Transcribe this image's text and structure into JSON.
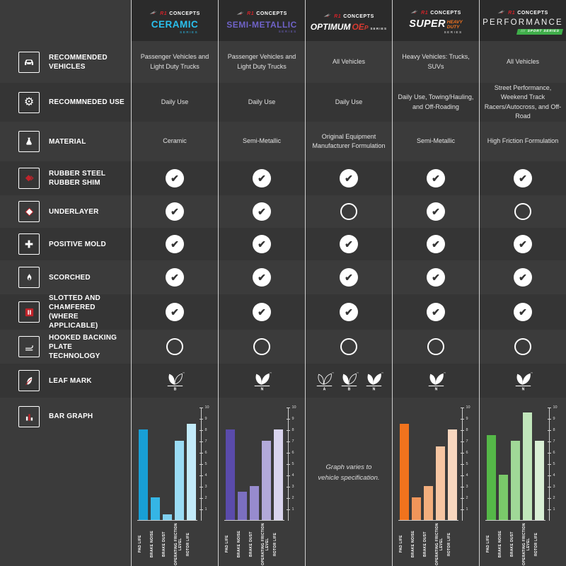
{
  "brand": {
    "prefix": "R1",
    "name": "CONCEPTS"
  },
  "header": {
    "columns": [
      {
        "title": "CERAMIC",
        "series": "SERIES",
        "accent": "#2ac0ee"
      },
      {
        "title": "SEMI-METALLIC",
        "series": "SERIES",
        "accent": "#6f63c8"
      },
      {
        "title": "OPTIMUM",
        "accent_text": "OE",
        "accent_sub": "P",
        "series": "SERIES",
        "accent": "#d93a30"
      },
      {
        "title": "SUPER",
        "accent_line1": "HEAVY",
        "accent_line2": "DUTY",
        "series": "SERIES",
        "accent": "#f3731f"
      },
      {
        "title": "PERFORMANCE",
        "badge_prefix": "///",
        "badge": "SPORT SERIES",
        "accent": "#3fae4a"
      }
    ]
  },
  "row_labels": [
    {
      "id": "vehicles",
      "label": "RECOMMENDED VEHICLES",
      "icon": "car-icon"
    },
    {
      "id": "use",
      "label": "RECOMMNEDED USE",
      "icon": "gear-icon"
    },
    {
      "id": "material",
      "label": "MATERIAL",
      "icon": "flask-icon"
    },
    {
      "id": "shim",
      "label": "RUBBER STEEL RUBBER SHIM",
      "icon": "shim-icon"
    },
    {
      "id": "underlayer",
      "label": "UNDERLAYER",
      "icon": "diamond-icon"
    },
    {
      "id": "mold",
      "label": "POSITIVE MOLD",
      "icon": "plus-icon"
    },
    {
      "id": "scorched",
      "label": "SCORCHED",
      "icon": "flame-icon"
    },
    {
      "id": "slotted",
      "label": "SLOTTED AND CHAMFERED (WHERE APPLICABLE)",
      "icon": "slots-icon"
    },
    {
      "id": "hooked",
      "label": "HOOKED BACKING PLATE TECHNOLOGY",
      "icon": "hook-icon"
    },
    {
      "id": "leaf",
      "label": "LEAF MARK",
      "icon": "leaf-icon"
    },
    {
      "id": "graph",
      "label": "BAR GRAPH",
      "icon": "bargraph-icon"
    }
  ],
  "text_rows": {
    "vehicles": [
      "Passenger Vehicles and Light Duty Trucks",
      "Passenger Vehicles and Light Duty Trucks",
      "All Vehicles",
      "Heavy Vehicles: Trucks, SUVs",
      "All Vehicles"
    ],
    "use": [
      "Daily Use",
      "Daily Use",
      "Daily Use",
      "Daily Use, Towing/Hauling, and Off-Roading",
      "Street Performance, Weekend Track Racers/Autocross, and Off-Road"
    ],
    "material": [
      "Ceramic",
      "Semi-Metallic",
      "Original Equipment Manufacturer Formulation",
      "Semi-Metallic",
      "High Friction Formulation"
    ]
  },
  "feature_rows": {
    "shim": [
      true,
      true,
      true,
      true,
      true
    ],
    "underlayer": [
      true,
      true,
      false,
      true,
      false
    ],
    "mold": [
      true,
      true,
      true,
      true,
      true
    ],
    "scorched": [
      true,
      true,
      true,
      true,
      true
    ],
    "slotted": [
      true,
      true,
      true,
      true,
      true
    ],
    "hooked": [
      false,
      false,
      false,
      false,
      false
    ]
  },
  "leaf_row": [
    [
      "B"
    ],
    [
      "N"
    ],
    [
      "A",
      "B",
      "N"
    ],
    [
      "N"
    ],
    [
      "N"
    ]
  ],
  "leaf_tm": "™",
  "graph_note": "Graph varies to vehicle specification.",
  "chart_data": [
    {
      "type": "bar",
      "series_name": "CERAMIC SERIES",
      "categories": [
        "PAD LIFE",
        "BRAKE NOISE",
        "BRAKE DUST",
        "OPERATING FRICTION LEVEL",
        "ROTOR LIFE"
      ],
      "values": [
        8,
        2,
        0.5,
        7,
        8.5
      ],
      "ylim": [
        0,
        10
      ],
      "yticks": [
        1,
        2,
        3,
        4,
        5,
        6,
        7,
        8,
        9,
        10
      ],
      "bar_colors": [
        "#189fd6",
        "#35b5e5",
        "#7fd0ef",
        "#9adcf4",
        "#c2ebfa"
      ]
    },
    {
      "type": "bar",
      "series_name": "SEMI-METALLIC SERIES",
      "categories": [
        "PAD LIFE",
        "BRAKE NOISE",
        "BRAKE DUST",
        "OPERATING FRICTION LEVEL",
        "ROTOR LIFE"
      ],
      "values": [
        8,
        2.5,
        3,
        7,
        8
      ],
      "ylim": [
        0,
        10
      ],
      "yticks": [
        1,
        2,
        3,
        4,
        5,
        6,
        7,
        8,
        9,
        10
      ],
      "bar_colors": [
        "#5a4bab",
        "#7b6fc0",
        "#978bce",
        "#b2a9da",
        "#d9d4ee"
      ]
    },
    {
      "type": "text",
      "series_name": "OPTIMUM OEP SERIES",
      "note": "Graph varies to vehicle specification."
    },
    {
      "type": "bar",
      "series_name": "SUPER HEAVY DUTY SERIES",
      "categories": [
        "PAD LIFE",
        "BRAKE NOISE",
        "BRAKE DUST",
        "OPERATING FRICTION LEVEL",
        "ROTOR LIFE"
      ],
      "values": [
        8.5,
        2,
        3,
        6.5,
        8
      ],
      "ylim": [
        0,
        10
      ],
      "yticks": [
        1,
        2,
        3,
        4,
        5,
        6,
        7,
        8,
        9,
        10
      ],
      "bar_colors": [
        "#f1731d",
        "#f0955a",
        "#f3ae7d",
        "#f6c5a2",
        "#f8d7bf"
      ]
    },
    {
      "type": "bar",
      "series_name": "PERFORMANCE SPORT SERIES",
      "categories": [
        "PAD LIFE",
        "BRAKE NOISE",
        "BRAKE DUST",
        "OPERATING FRICTION LEVEL",
        "ROTOR LIFE"
      ],
      "values": [
        7.5,
        4,
        7,
        9.5,
        7
      ],
      "ylim": [
        0,
        10
      ],
      "yticks": [
        1,
        2,
        3,
        4,
        5,
        6,
        7,
        8,
        9,
        10
      ],
      "bar_colors": [
        "#55b848",
        "#7ac96a",
        "#a0d897",
        "#c1e6bb",
        "#d9f0d5"
      ]
    }
  ]
}
